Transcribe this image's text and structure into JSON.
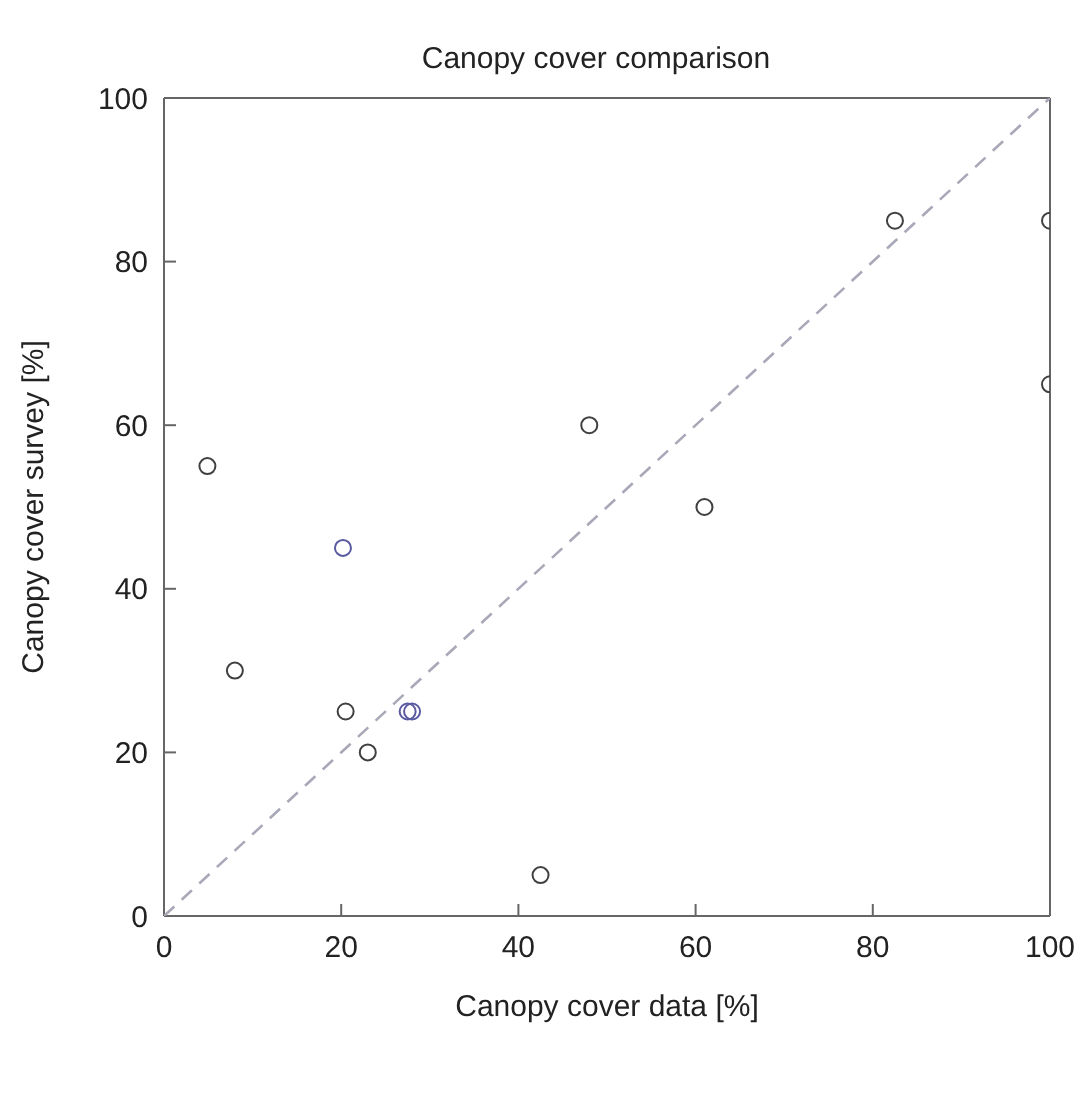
{
  "chart_data": {
    "type": "scatter",
    "title": "Canopy cover comparison",
    "xlabel": "Canopy cover data [%]",
    "ylabel": "Canopy cover survey [%]",
    "xlim": [
      0,
      100
    ],
    "ylim": [
      0,
      100
    ],
    "xticks": [
      0,
      20,
      40,
      60,
      80,
      100
    ],
    "yticks": [
      0,
      20,
      40,
      60,
      80,
      100
    ],
    "legend": false,
    "marker": "circle",
    "series": [
      {
        "x": [
          4.9,
          8,
          20.2,
          20.5,
          23,
          27.5,
          28,
          42.5,
          48,
          61,
          82.5,
          100,
          100
        ],
        "values": [
          55,
          30,
          45,
          25,
          20,
          25,
          25,
          5,
          60,
          50,
          85,
          85,
          65
        ],
        "colors": [
          "#404040",
          "#404040",
          "#5a5aa0",
          "#404040",
          "#404040",
          "#5a5aa0",
          "#5a5aa0",
          "#404040",
          "#404040",
          "#404040",
          "#404040",
          "#404040",
          "#404040"
        ]
      },
      {
        "type": "line",
        "x": [
          0,
          100
        ],
        "values": [
          0,
          100
        ],
        "color": "#a8a8b8",
        "line_style": "dashed",
        "marker": "none"
      }
    ]
  }
}
